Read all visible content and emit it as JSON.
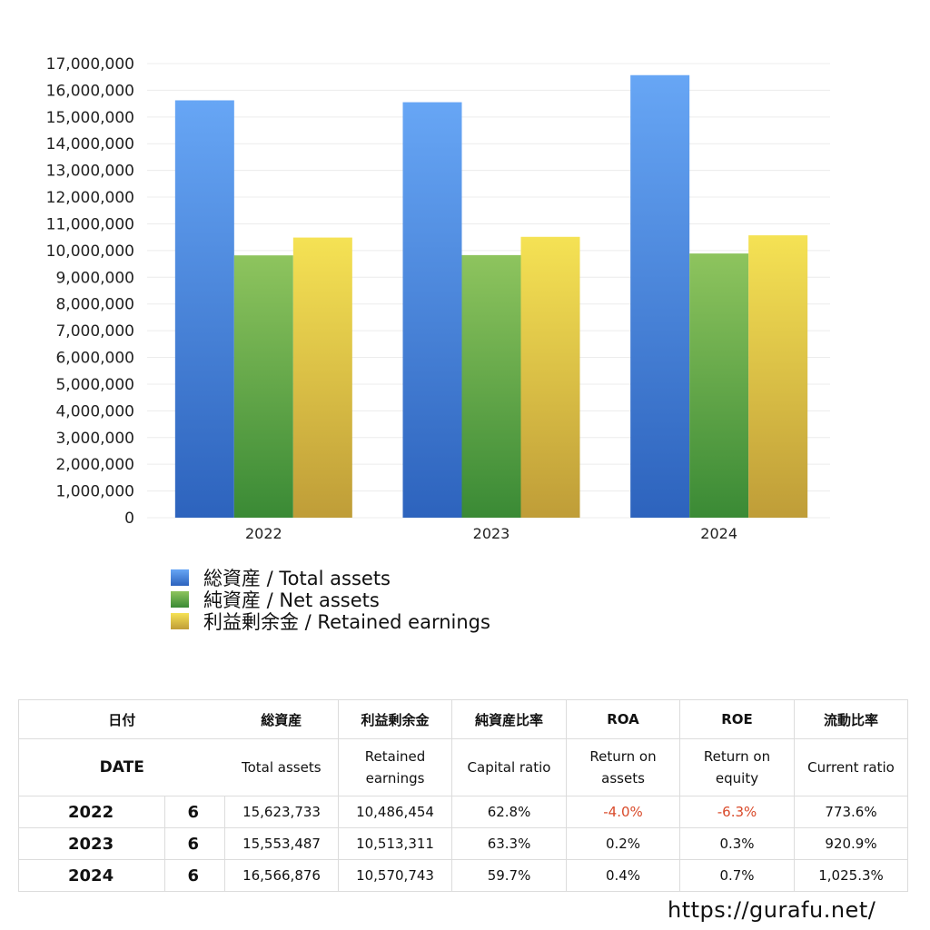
{
  "chart_data": {
    "type": "bar",
    "categories": [
      "2022",
      "2023",
      "2024"
    ],
    "series": [
      {
        "name": "総資産 / Total assets",
        "values": [
          15623733,
          15553487,
          16566876
        ],
        "color_top": "#67a6f5",
        "color_bottom": "#2d63bd"
      },
      {
        "name": "純資産 / Net assets",
        "values": [
          9820000,
          9830000,
          9890000
        ],
        "color_top": "#8ec45e",
        "color_bottom": "#3a8a35"
      },
      {
        "name": "利益剰余金 / Retained earnings",
        "values": [
          10486454,
          10513311,
          10570743
        ],
        "color_top": "#f5e254",
        "color_bottom": "#bf9d38"
      }
    ],
    "ylim": [
      0,
      17000000
    ],
    "yticks": [
      "0",
      "1,000,000",
      "2,000,000",
      "3,000,000",
      "4,000,000",
      "5,000,000",
      "6,000,000",
      "7,000,000",
      "8,000,000",
      "9,000,000",
      "10,000,000",
      "11,000,000",
      "12,000,000",
      "13,000,000",
      "14,000,000",
      "15,000,000",
      "16,000,000",
      "17,000,000"
    ],
    "grid": true,
    "legend_position": "bottom-left"
  },
  "table": {
    "header_jp": {
      "date": "日付",
      "total_assets": "総資産",
      "retained": "利益剰余金",
      "capital_ratio": "純資産比率",
      "roa": "ROA",
      "roe": "ROE",
      "current_ratio": "流動比率"
    },
    "header_en": {
      "date": "DATE",
      "total_assets": "Total assets",
      "retained_1": "Retained",
      "retained_2": "earnings",
      "capital_ratio": "Capital ratio",
      "roa_1": "Return on",
      "roa_2": "assets",
      "roe_1": "Return on",
      "roe_2": "equity",
      "current_ratio": "Current ratio"
    },
    "rows": [
      {
        "year": "2022",
        "months": "6",
        "total_assets": "15,623,733",
        "retained": "10,486,454",
        "capital_ratio": "62.8%",
        "roa": "-4.0%",
        "roe": "-6.3%",
        "current_ratio": "773.6%"
      },
      {
        "year": "2023",
        "months": "6",
        "total_assets": "15,553,487",
        "retained": "10,513,311",
        "capital_ratio": "63.3%",
        "roa": "0.2%",
        "roe": "0.3%",
        "current_ratio": "920.9%"
      },
      {
        "year": "2024",
        "months": "6",
        "total_assets": "16,566,876",
        "retained": "10,570,743",
        "capital_ratio": "59.7%",
        "roa": "0.4%",
        "roe": "0.7%",
        "current_ratio": "1,025.3%"
      }
    ]
  },
  "footer": {
    "url": "https://gurafu.net/"
  }
}
